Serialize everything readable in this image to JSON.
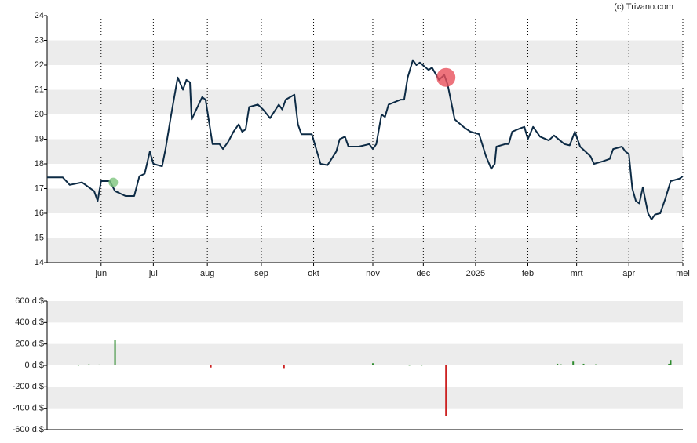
{
  "watermark": "(c) Trivano.com",
  "chart_data": [
    {
      "type": "line",
      "color": "#0d2b45",
      "grid": true,
      "x": [
        0,
        9,
        13,
        20,
        27,
        29,
        31,
        36,
        39,
        45,
        50,
        53,
        56,
        59,
        61,
        66,
        68,
        71,
        75,
        78,
        80,
        82,
        83,
        85,
        89,
        91,
        95,
        99,
        101,
        104,
        107,
        110,
        112,
        114,
        116,
        121,
        124,
        128,
        133,
        135,
        137,
        142,
        144,
        146,
        152,
        157,
        161,
        166,
        168,
        171,
        173,
        179,
        185,
        187,
        189,
        192,
        194,
        196,
        203,
        205,
        207,
        210,
        212,
        214,
        219,
        221,
        225,
        228,
        230,
        234,
        239,
        243,
        248,
        252,
        255,
        257,
        258,
        263,
        265,
        267,
        272,
        274,
        276,
        279,
        283,
        288,
        291,
        297,
        300,
        303,
        306,
        312,
        314,
        319,
        323,
        325,
        330,
        332,
        334,
        336,
        338,
        340,
        342,
        345,
        347,
        349,
        352,
        355,
        358,
        363,
        365
      ],
      "values": [
        17.45,
        17.45,
        17.15,
        17.25,
        16.9,
        16.5,
        17.3,
        17.3,
        16.9,
        16.7,
        16.7,
        17.5,
        17.6,
        18.5,
        18.0,
        17.9,
        18.6,
        19.9,
        21.5,
        21.0,
        21.4,
        21.3,
        19.8,
        20.1,
        20.7,
        20.6,
        18.8,
        18.8,
        18.6,
        18.9,
        19.3,
        19.6,
        19.3,
        19.4,
        20.3,
        20.4,
        20.2,
        19.85,
        20.4,
        20.2,
        20.6,
        20.8,
        19.6,
        19.2,
        19.2,
        18.0,
        17.95,
        18.5,
        19.0,
        19.1,
        18.7,
        18.7,
        18.8,
        18.6,
        18.8,
        20.0,
        19.9,
        20.4,
        20.6,
        20.6,
        21.5,
        22.2,
        22.0,
        22.1,
        21.8,
        21.9,
        21.4,
        21.6,
        21.2,
        19.8,
        19.5,
        19.3,
        19.2,
        18.3,
        17.8,
        18.0,
        18.7,
        18.8,
        18.8,
        19.3,
        19.45,
        19.5,
        19.0,
        19.5,
        19.1,
        18.95,
        19.15,
        18.8,
        18.75,
        19.3,
        18.7,
        18.3,
        18.0,
        18.1,
        18.2,
        18.6,
        18.7,
        18.5,
        18.4,
        17.0,
        16.5,
        16.4,
        17.05,
        16.0,
        15.75,
        15.95,
        16.0,
        16.6,
        17.3,
        17.4,
        17.5
      ],
      "markers": [
        {
          "x": 38,
          "y": 17.25,
          "color": "#7dc47d"
        },
        {
          "x": 229,
          "y": 21.5,
          "color": "#e8505b"
        }
      ],
      "xlim": [
        0,
        365
      ],
      "xticks": [
        {
          "value": 31,
          "label": "jun"
        },
        {
          "value": 61,
          "label": "jul"
        },
        {
          "value": 92,
          "label": "aug"
        },
        {
          "value": 123,
          "label": "sep"
        },
        {
          "value": 153,
          "label": "okt"
        },
        {
          "value": 187,
          "label": "nov"
        },
        {
          "value": 216,
          "label": "dec"
        },
        {
          "value": 246,
          "label": "2025"
        },
        {
          "value": 276,
          "label": "feb"
        },
        {
          "value": 304,
          "label": "mrt"
        },
        {
          "value": 334,
          "label": "apr"
        },
        {
          "value": 365,
          "label": "mei"
        }
      ],
      "ylim": [
        14,
        24
      ],
      "yticks": [
        14,
        15,
        16,
        17,
        18,
        19,
        20,
        21,
        22,
        23,
        24
      ]
    },
    {
      "type": "bar",
      "grid": true,
      "color": "#2e8b2e",
      "negative_color": "#cc2222",
      "x": [
        18,
        24,
        30,
        39,
        94,
        136,
        187,
        208,
        215,
        229,
        293,
        295,
        302,
        308,
        315,
        357,
        358
      ],
      "values": [
        5,
        10,
        8,
        240,
        -20,
        -25,
        20,
        5,
        5,
        -470,
        15,
        10,
        35,
        15,
        10,
        15,
        50
      ],
      "xlim": [
        0,
        365
      ],
      "ylim": [
        -600,
        600
      ],
      "yticks": [
        {
          "value": -600,
          "label": "-600 d.$"
        },
        {
          "value": -400,
          "label": "-400 d.$"
        },
        {
          "value": -200,
          "label": "-200 d.$"
        },
        {
          "value": 0,
          "label": "0 d.$"
        },
        {
          "value": 200,
          "label": "200 d.$"
        },
        {
          "value": 400,
          "label": "400 d.$"
        },
        {
          "value": 600,
          "label": "600 d.$"
        }
      ]
    }
  ]
}
